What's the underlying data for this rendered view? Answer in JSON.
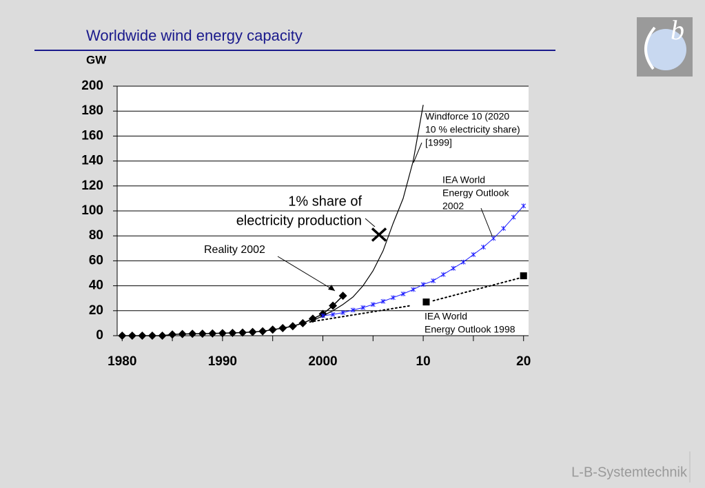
{
  "chart_data": {
    "type": "line",
    "title": "Worldwide wind energy capacity",
    "y_label": "GW",
    "xlim": [
      1979.5,
      2020.5
    ],
    "xticks": [
      1980,
      1990,
      2000,
      {
        "value": 2010,
        "label": "10"
      },
      {
        "value": 2020,
        "label": "20"
      }
    ],
    "xminor": [
      1985,
      1995,
      2005,
      2015
    ],
    "ylim": [
      0,
      200
    ],
    "yticks": [
      0,
      20,
      40,
      60,
      80,
      100,
      120,
      140,
      160,
      180,
      200
    ],
    "grid": "y",
    "series": [
      {
        "color": "#000000",
        "marker": "diamond",
        "width": 1.5,
        "x": [
          1980,
          1981,
          1982,
          1983,
          1984,
          1985,
          1986,
          1987,
          1988,
          1989,
          1990,
          1991,
          1992,
          1993,
          1994,
          1995,
          1996,
          1997,
          1998,
          1999,
          2000,
          2001,
          2002
        ],
        "values": [
          0,
          0,
          0,
          0,
          0,
          1,
          1.3,
          1.5,
          1.6,
          1.8,
          2,
          2.2,
          2.5,
          3,
          3.5,
          4.8,
          6.1,
          7.6,
          10,
          13.6,
          17.4,
          24,
          32
        ]
      },
      {
        "color": "#000000",
        "marker": "none",
        "width": 1.2,
        "x": [
          1999,
          2000,
          2001,
          2002,
          2003,
          2004,
          2005,
          2006,
          2007,
          2008,
          2009,
          2010
        ],
        "values": [
          12,
          16,
          20,
          25,
          31,
          40,
          52,
          68,
          90,
          110,
          140,
          185
        ]
      },
      {
        "color": "#1a1aff",
        "marker": "star",
        "width": 1,
        "x": [
          2000,
          2001,
          2002,
          2003,
          2004,
          2005,
          2006,
          2007,
          2008,
          2009,
          2010,
          2011,
          2012,
          2013,
          2014,
          2015,
          2016,
          2017,
          2018,
          2019,
          2020
        ],
        "values": [
          16,
          17,
          18.5,
          20.5,
          22.5,
          25,
          27.5,
          30.5,
          33.5,
          37,
          41,
          44,
          49,
          54,
          59,
          65,
          71,
          78,
          86,
          95,
          104
        ]
      },
      {
        "color": "#000000",
        "marker": "none",
        "dash": "dotted",
        "width": 2,
        "x": [
          1998.7,
          2008.7,
          2009.5,
          2011,
          2020
        ],
        "values": [
          11,
          24,
          null,
          28,
          47
        ]
      },
      {
        "color": "#000000",
        "marker": "square",
        "width": 0,
        "x": [
          2010.3,
          2020
        ],
        "values": [
          27,
          48
        ]
      },
      {
        "color": "#000000",
        "marker": "cross",
        "width": 0,
        "x": [
          2005.6
        ],
        "values": [
          81
        ]
      }
    ],
    "annotations": {
      "windforce": [
        "Windforce 10 (2020",
        "10 % electricity share)",
        "[1999]"
      ],
      "iea2002": [
        "IEA World",
        "Energy Outlook",
        "2002"
      ],
      "iea1998": [
        "IEA World",
        "Energy Outlook 1998"
      ],
      "reality": "Reality 2002",
      "share": [
        "1% share of",
        "electricity production"
      ]
    }
  },
  "logo": "b",
  "footer": "L-B-Systemtechnik"
}
